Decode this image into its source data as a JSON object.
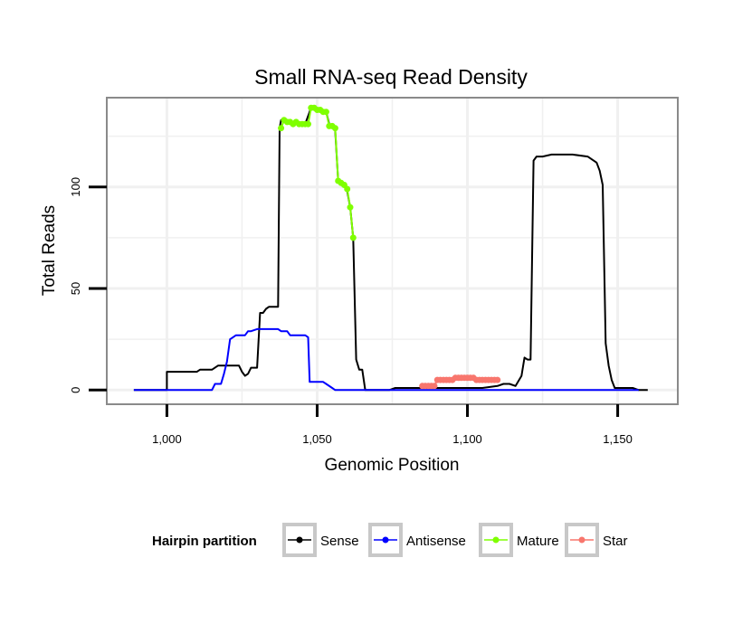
{
  "chart_data": {
    "type": "line",
    "title": "Small RNA-seq Read Density",
    "xlabel": "Genomic Position",
    "ylabel": "Total Reads",
    "xlim": [
      980,
      1170
    ],
    "ylim": [
      -7,
      144
    ],
    "x_ticks": [
      1000,
      1050,
      1100,
      1150
    ],
    "x_tick_labels": [
      "1,000",
      "1,050",
      "1,100",
      "1,150"
    ],
    "y_ticks": [
      0,
      50,
      100
    ],
    "y_tick_labels": [
      "0",
      "50",
      "100"
    ],
    "grid": true,
    "legend": {
      "title": "Hairpin partition",
      "position": "bottom"
    },
    "series": [
      {
        "name": "Sense",
        "color": "#000000",
        "style": "line",
        "points": [
          [
            989,
            0
          ],
          [
            1000,
            0
          ],
          [
            1000,
            9
          ],
          [
            1003,
            9
          ],
          [
            1006,
            9
          ],
          [
            1010,
            9
          ],
          [
            1011,
            10
          ],
          [
            1015,
            10
          ],
          [
            1017,
            12
          ],
          [
            1020,
            12
          ],
          [
            1022,
            12
          ],
          [
            1024,
            12
          ],
          [
            1025,
            9
          ],
          [
            1026,
            7
          ],
          [
            1027,
            8
          ],
          [
            1028,
            11
          ],
          [
            1029,
            11
          ],
          [
            1030,
            11
          ],
          [
            1031,
            38
          ],
          [
            1032,
            38
          ],
          [
            1033,
            40
          ],
          [
            1034,
            41
          ],
          [
            1036,
            41
          ],
          [
            1037,
            41
          ],
          [
            1037.5,
            129
          ],
          [
            1038,
            133
          ],
          [
            1040,
            133
          ],
          [
            1042,
            132
          ],
          [
            1044,
            131
          ],
          [
            1046,
            131
          ],
          [
            1048,
            139
          ],
          [
            1050,
            139
          ],
          [
            1051,
            138
          ],
          [
            1052,
            137
          ],
          [
            1053,
            137
          ],
          [
            1054,
            131
          ],
          [
            1055,
            130
          ],
          [
            1056,
            128
          ],
          [
            1057,
            103
          ],
          [
            1058,
            102
          ],
          [
            1059,
            101
          ],
          [
            1060,
            98
          ],
          [
            1061,
            90
          ],
          [
            1062,
            75
          ],
          [
            1063,
            15
          ],
          [
            1064,
            10
          ],
          [
            1065,
            10
          ],
          [
            1066,
            0
          ],
          [
            1070,
            0
          ],
          [
            1074,
            0
          ],
          [
            1076,
            1
          ],
          [
            1080,
            1
          ],
          [
            1090,
            1
          ],
          [
            1100,
            1
          ],
          [
            1105,
            1
          ],
          [
            1110,
            2
          ],
          [
            1112,
            3
          ],
          [
            1114,
            3
          ],
          [
            1116,
            2
          ],
          [
            1118,
            7
          ],
          [
            1119,
            16
          ],
          [
            1120,
            15
          ],
          [
            1121,
            15
          ],
          [
            1122,
            113
          ],
          [
            1123,
            115
          ],
          [
            1125,
            115
          ],
          [
            1128,
            116
          ],
          [
            1135,
            116
          ],
          [
            1140,
            115
          ],
          [
            1142,
            113
          ],
          [
            1143,
            112
          ],
          [
            1144,
            108
          ],
          [
            1145,
            101
          ],
          [
            1146,
            23
          ],
          [
            1147,
            12
          ],
          [
            1148,
            5
          ],
          [
            1149,
            1
          ],
          [
            1155,
            1
          ],
          [
            1157,
            0
          ],
          [
            1160,
            0
          ]
        ]
      },
      {
        "name": "Antisense",
        "color": "#0000ff",
        "style": "line",
        "points": [
          [
            989,
            0
          ],
          [
            1015,
            0
          ],
          [
            1016,
            3
          ],
          [
            1018,
            3
          ],
          [
            1019,
            8
          ],
          [
            1020,
            14
          ],
          [
            1021,
            25
          ],
          [
            1022,
            26
          ],
          [
            1023,
            27
          ],
          [
            1026,
            27
          ],
          [
            1027,
            29
          ],
          [
            1028,
            29
          ],
          [
            1030,
            30
          ],
          [
            1037,
            30
          ],
          [
            1038,
            29
          ],
          [
            1040,
            29
          ],
          [
            1041,
            27
          ],
          [
            1043,
            27
          ],
          [
            1046,
            27
          ],
          [
            1047,
            26
          ],
          [
            1047.5,
            4
          ],
          [
            1052,
            4
          ],
          [
            1053,
            3
          ],
          [
            1055,
            1
          ],
          [
            1056,
            0
          ],
          [
            1100,
            0
          ],
          [
            1110,
            0
          ],
          [
            1150,
            0
          ],
          [
            1157,
            0
          ]
        ]
      },
      {
        "name": "Mature",
        "color": "#7fff00",
        "style": "line+points",
        "points": [
          [
            1038,
            129
          ],
          [
            1039,
            133
          ],
          [
            1040,
            132
          ],
          [
            1041,
            132
          ],
          [
            1042,
            131
          ],
          [
            1043,
            132
          ],
          [
            1044,
            131
          ],
          [
            1045,
            131
          ],
          [
            1046,
            131
          ],
          [
            1047,
            131
          ],
          [
            1048,
            139
          ],
          [
            1049,
            139
          ],
          [
            1050,
            138
          ],
          [
            1051,
            138
          ],
          [
            1052,
            137
          ],
          [
            1053,
            137
          ],
          [
            1054,
            130
          ],
          [
            1055,
            130
          ],
          [
            1056,
            129
          ],
          [
            1057,
            103
          ],
          [
            1058,
            102
          ],
          [
            1059,
            101
          ],
          [
            1060,
            99
          ],
          [
            1061,
            90
          ],
          [
            1062,
            75
          ]
        ]
      },
      {
        "name": "Star",
        "color": "#f8766d",
        "style": "line+points",
        "points": [
          [
            1085,
            2
          ],
          [
            1086,
            2
          ],
          [
            1087,
            2
          ],
          [
            1088,
            2
          ],
          [
            1089,
            2
          ],
          [
            1090,
            5
          ],
          [
            1091,
            5
          ],
          [
            1092,
            5
          ],
          [
            1093,
            5
          ],
          [
            1094,
            5
          ],
          [
            1095,
            5
          ],
          [
            1096,
            6
          ],
          [
            1097,
            6
          ],
          [
            1098,
            6
          ],
          [
            1099,
            6
          ],
          [
            1100,
            6
          ],
          [
            1101,
            6
          ],
          [
            1102,
            6
          ],
          [
            1103,
            5
          ],
          [
            1104,
            5
          ],
          [
            1105,
            5
          ],
          [
            1106,
            5
          ],
          [
            1107,
            5
          ],
          [
            1108,
            5
          ],
          [
            1109,
            5
          ],
          [
            1110,
            5
          ]
        ]
      }
    ]
  }
}
